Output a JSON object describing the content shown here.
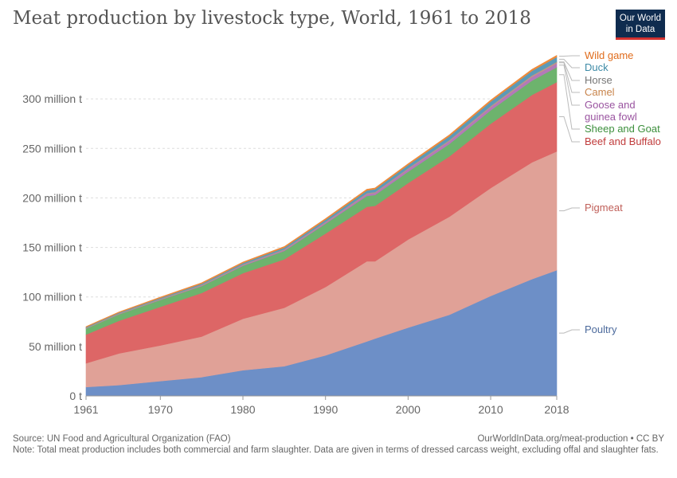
{
  "header": {
    "title": "Meat production by livestock type, World, 1961 to 2018",
    "logo_line1": "Our World",
    "logo_line2": "in Data"
  },
  "footer": {
    "source": "Source: UN Food and Agricultural Organization (FAO)",
    "url": "OurWorldInData.org/meat-production • CC BY",
    "note": "Note: Total meat production includes both commercial and farm slaughter. Data are given in terms of dressed carcass weight, excluding offal and slaughter fats."
  },
  "chart_data": {
    "type": "area",
    "stacked": true,
    "title": "Meat production by livestock type, World, 1961 to 2018",
    "xlabel": "",
    "ylabel": "",
    "x": [
      1961,
      1965,
      1970,
      1975,
      1980,
      1985,
      1990,
      1995,
      1996,
      2000,
      2005,
      2010,
      2015,
      2018
    ],
    "x_ticks": [
      {
        "value": 1961,
        "label": "1961"
      },
      {
        "value": 1970,
        "label": "1970"
      },
      {
        "value": 1980,
        "label": "1980"
      },
      {
        "value": 1990,
        "label": "1990"
      },
      {
        "value": 2000,
        "label": "2000"
      },
      {
        "value": 2010,
        "label": "2010"
      },
      {
        "value": 2018,
        "label": "2018"
      }
    ],
    "y_ticks": [
      {
        "value": 0,
        "label": "0 t"
      },
      {
        "value": 50,
        "label": "50 million t"
      },
      {
        "value": 100,
        "label": "100 million t"
      },
      {
        "value": 150,
        "label": "150 million t"
      },
      {
        "value": 200,
        "label": "200 million t"
      },
      {
        "value": 250,
        "label": "250 million t"
      },
      {
        "value": 300,
        "label": "300 million t"
      }
    ],
    "ylim": [
      0,
      350
    ],
    "xlim": [
      1961,
      2018
    ],
    "grid": true,
    "legend": "right",
    "series": [
      {
        "name": "Poultry",
        "color": "#6d8fc7",
        "label_color": "#4c6a9c",
        "values": [
          9,
          11,
          15,
          19,
          26,
          30,
          41,
          55,
          58,
          69,
          82,
          101,
          118,
          127
        ]
      },
      {
        "name": "Pigmeat",
        "color": "#e0a197",
        "label_color": "#c0605a",
        "values": [
          24,
          32,
          36,
          41,
          52,
          59,
          69,
          81,
          78,
          89,
          99,
          109,
          118,
          120
        ]
      },
      {
        "name": "Beef and Buffalo",
        "color": "#dd6666",
        "label_color": "#c03b3b",
        "values": [
          29,
          33,
          39,
          44,
          46,
          49,
          54,
          55,
          56,
          57,
          61,
          65,
          68,
          70
        ]
      },
      {
        "name": "Sheep and Goat",
        "color": "#6db36d",
        "label_color": "#3c8f3c",
        "values": [
          6,
          6.5,
          7,
          7,
          7.5,
          8.5,
          10,
          11,
          11,
          11.5,
          12.5,
          13.5,
          14.5,
          15
        ]
      },
      {
        "name": "Goose and guinea fowl",
        "color": "#b37ab8",
        "label_color": "#9a54a0",
        "values": [
          0.2,
          0.3,
          0.4,
          0.6,
          0.8,
          1.0,
          1.3,
          2.0,
          2.1,
          2.7,
          3.0,
          3.3,
          4.0,
          4.3
        ]
      },
      {
        "name": "Camel",
        "color": "#d9a06b",
        "label_color": "#c8844b",
        "values": [
          0.2,
          0.2,
          0.2,
          0.2,
          0.2,
          0.2,
          0.2,
          0.3,
          0.3,
          0.3,
          0.4,
          0.5,
          0.6,
          0.6
        ]
      },
      {
        "name": "Horse",
        "color": "#999999",
        "label_color": "#777777",
        "values": [
          0.6,
          0.6,
          0.7,
          0.7,
          0.7,
          0.7,
          0.6,
          0.7,
          0.7,
          0.7,
          0.8,
          0.8,
          0.8,
          0.8
        ]
      },
      {
        "name": "Duck",
        "color": "#5b9ab8",
        "label_color": "#3d8aa6",
        "values": [
          0.5,
          0.6,
          0.7,
          0.9,
          1.1,
          1.4,
          1.8,
          2.5,
          2.7,
          3.0,
          3.6,
          4.2,
          4.4,
          4.6
        ]
      },
      {
        "name": "Wild game",
        "color": "#ee8a3a",
        "label_color": "#e06c1c",
        "values": [
          0.6,
          0.7,
          0.8,
          0.9,
          1.0,
          1.1,
          1.2,
          1.3,
          1.3,
          1.3,
          1.4,
          1.5,
          1.6,
          1.7
        ]
      }
    ],
    "legend_labels": [
      {
        "series": "Wild game",
        "lines": [
          "Wild game"
        ]
      },
      {
        "series": "Duck",
        "lines": [
          "Duck"
        ]
      },
      {
        "series": "Horse",
        "lines": [
          "Horse"
        ]
      },
      {
        "series": "Camel",
        "lines": [
          "Camel"
        ]
      },
      {
        "series": "Goose and guinea fowl",
        "lines": [
          "Goose and",
          "guinea fowl"
        ]
      },
      {
        "series": "Sheep and Goat",
        "lines": [
          "Sheep and Goat"
        ]
      },
      {
        "series": "Beef and Buffalo",
        "lines": [
          "Beef and Buffalo"
        ]
      },
      {
        "series": "Pigmeat",
        "lines": [
          "Pigmeat"
        ]
      },
      {
        "series": "Poultry",
        "lines": [
          "Poultry"
        ]
      }
    ]
  }
}
